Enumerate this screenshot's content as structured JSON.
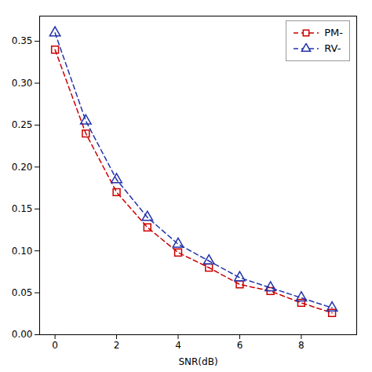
{
  "chart_data": {
    "type": "line",
    "xlabel": "SNR(dB)",
    "x": [
      0,
      1,
      2,
      3,
      4,
      5,
      6,
      7,
      8,
      9
    ],
    "series": [
      {
        "name": "PM-",
        "color": "#cc0000",
        "marker": "square",
        "line_style": "dashed",
        "values": [
          0.34,
          0.24,
          0.17,
          0.128,
          0.098,
          0.08,
          0.06,
          0.052,
          0.038,
          0.026
        ]
      },
      {
        "name": "RV-",
        "color": "#2233aa",
        "marker": "triangle",
        "line_style": "dashed",
        "values": [
          0.36,
          0.255,
          0.185,
          0.14,
          0.108,
          0.088,
          0.068,
          0.056,
          0.044,
          0.032
        ]
      }
    ],
    "xlim": [
      -0.5,
      9.8
    ],
    "ylim": [
      0.0,
      0.38
    ],
    "xticks": [
      0,
      2,
      4,
      6,
      8
    ],
    "yticks": [
      {
        "value": 0.0,
        "label": "0.00"
      },
      0.05,
      {
        "value": 0.1,
        "label": "0.10"
      },
      0.15,
      {
        "value": 0.2,
        "label": "0.20"
      },
      0.25,
      {
        "value": 0.3,
        "label": "0.30"
      },
      0.35
    ],
    "legend": "upper right"
  }
}
